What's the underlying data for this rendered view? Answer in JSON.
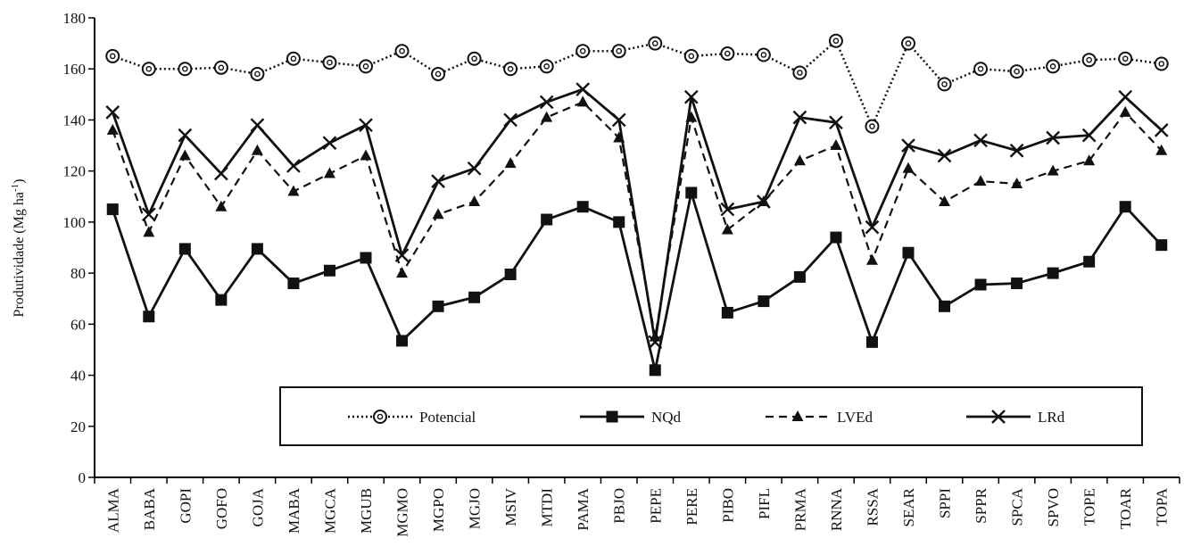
{
  "chart_data": {
    "type": "line",
    "title": "",
    "xlabel": "",
    "ylabel": "Produtividade (Mg ha",
    "ylabel_sup": "-1",
    "ylabel_close": ")",
    "ylim": [
      0,
      180
    ],
    "yticks": [
      "0",
      "20",
      "40",
      "60",
      "80",
      "100",
      "120",
      "140",
      "160",
      "180"
    ],
    "grid": false,
    "legend_position": "bottom-center inside plot",
    "categories": [
      "ALMA",
      "BABA",
      "GOPI",
      "GOFO",
      "GOJA",
      "MABA",
      "MGCA",
      "MGUB",
      "MGMO",
      "MGPO",
      "MGJO",
      "MSIV",
      "MTDI",
      "PAMA",
      "PBJO",
      "PEPE",
      "PERE",
      "PIBO",
      "PIFL",
      "PRMA",
      "RNNA",
      "RSSA",
      "SEAR",
      "SPPI",
      "SPPR",
      "SPCA",
      "SPVO",
      "TOPE",
      "TOAR",
      "TOPA"
    ],
    "series": [
      {
        "name": "Potencial",
        "line": "dotted",
        "marker": "circle-open",
        "values": [
          165,
          160,
          160,
          160.5,
          158,
          164,
          162.5,
          161,
          167,
          158,
          164,
          160,
          161,
          167,
          167,
          170,
          165,
          166,
          165.5,
          158.5,
          171,
          137.5,
          170,
          154,
          160,
          159,
          161,
          163.5,
          164,
          162
        ]
      },
      {
        "name": "NQd",
        "line": "solid",
        "marker": "square",
        "values": [
          105,
          63,
          89.5,
          69.5,
          89.5,
          76,
          81,
          86,
          53.5,
          67,
          70.5,
          79.5,
          101,
          106,
          100,
          42,
          111.5,
          64.5,
          69,
          78.5,
          94,
          53,
          88,
          67,
          75.5,
          76,
          80,
          84.5,
          106,
          91
        ]
      },
      {
        "name": "LVEd",
        "line": "dashed",
        "marker": "triangle",
        "values": [
          136,
          96,
          126,
          106,
          128,
          112,
          119,
          126,
          80,
          103,
          108,
          123,
          141,
          147,
          133,
          55,
          141,
          97,
          108,
          124,
          130,
          85,
          121,
          108,
          116,
          115,
          120,
          124,
          143,
          128
        ]
      },
      {
        "name": "LRd",
        "line": "solid",
        "marker": "x",
        "values": [
          143,
          103,
          134,
          119,
          138,
          122,
          131,
          138,
          87,
          116,
          121,
          140,
          147,
          152,
          140,
          53,
          149,
          105,
          108,
          141,
          139,
          98,
          130,
          126,
          132,
          128,
          133,
          134,
          149,
          136
        ]
      }
    ]
  }
}
